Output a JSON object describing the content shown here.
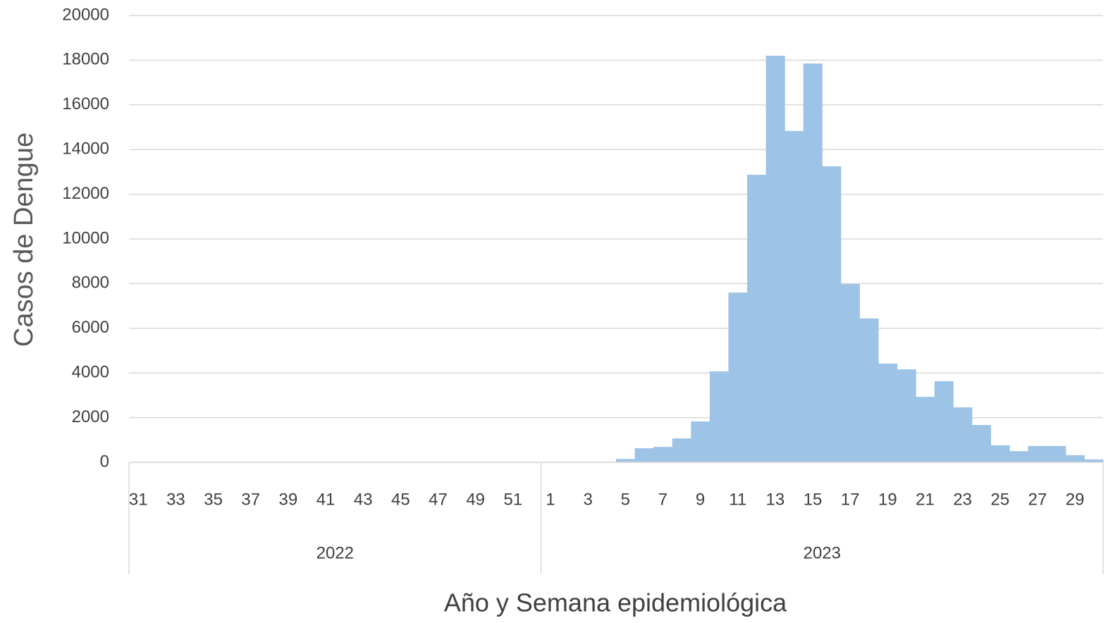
{
  "chart_data": {
    "type": "bar",
    "y_label": "Casos de Dengue",
    "x_label": "Año y Semana epidemiológica",
    "color": "#9dc3e6",
    "grid": true,
    "ylim": [
      0,
      20000
    ],
    "yticks": [
      0,
      2000,
      4000,
      6000,
      8000,
      10000,
      12000,
      14000,
      16000,
      18000,
      20000
    ],
    "groups": [
      {
        "name": "2022",
        "categories": [
          "31",
          null,
          "33",
          null,
          "35",
          null,
          "37",
          null,
          "39",
          null,
          "41",
          null,
          "43",
          null,
          "45",
          null,
          "47",
          null,
          "49",
          null,
          "51",
          null
        ],
        "values": [
          0,
          0,
          0,
          0,
          0,
          0,
          0,
          0,
          0,
          0,
          0,
          0,
          0,
          0,
          0,
          0,
          0,
          0,
          0,
          0,
          0,
          0
        ]
      },
      {
        "name": "2023",
        "categories": [
          "1",
          null,
          "3",
          null,
          "5",
          null,
          "7",
          null,
          "9",
          null,
          "11",
          null,
          "13",
          null,
          "15",
          null,
          "17",
          null,
          "19",
          null,
          "21",
          null,
          "23",
          null,
          "25",
          null,
          "27",
          null,
          "29",
          null
        ],
        "values": [
          0,
          0,
          0,
          0,
          150,
          630,
          690,
          1070,
          1830,
          4070,
          7600,
          12870,
          18200,
          14830,
          17850,
          13250,
          7980,
          6440,
          4420,
          4160,
          2930,
          3630,
          2460,
          1670,
          760,
          500,
          730,
          730,
          320,
          130
        ]
      }
    ]
  }
}
